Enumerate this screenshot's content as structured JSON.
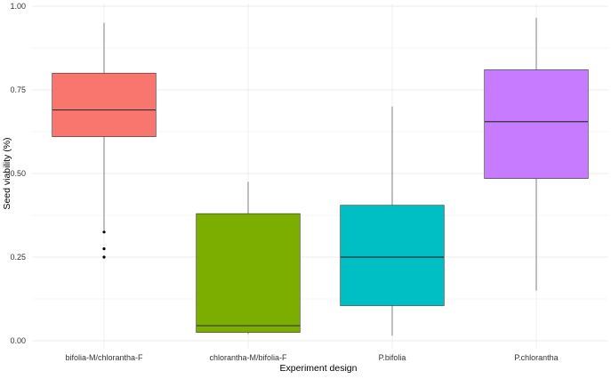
{
  "chart_data": {
    "type": "boxplot",
    "title": "",
    "xlabel": "Experiment design",
    "ylabel": "Seed viability (%)",
    "ylim": [
      0,
      1
    ],
    "y_ticks": [
      "0.00",
      "0.25",
      "0.50",
      "0.75",
      "1.00"
    ],
    "y_tick_values": [
      0,
      0.25,
      0.5,
      0.75,
      1.0
    ],
    "grid": true,
    "legend": "none",
    "categories": [
      "bifolia-M/chlorantha-F",
      "chlorantha-M/bifolia-F",
      "P.bifolia",
      "P.chlorantha"
    ],
    "boxes": [
      {
        "category": "bifolia-M/chlorantha-F",
        "min": 0.33,
        "q1": 0.61,
        "median": 0.69,
        "q3": 0.8,
        "max": 0.95,
        "outliers": [
          0.325,
          0.275,
          0.25
        ],
        "color": "#F8766D"
      },
      {
        "category": "chlorantha-M/bifolia-F",
        "min": 0.02,
        "q1": 0.025,
        "median": 0.045,
        "q3": 0.38,
        "max": 0.475,
        "outliers": [],
        "color": "#7CAE00"
      },
      {
        "category": "P.bifolia",
        "min": 0.015,
        "q1": 0.105,
        "median": 0.25,
        "q3": 0.405,
        "max": 0.7,
        "outliers": [],
        "color": "#00BFC4"
      },
      {
        "category": "P.chlorantha",
        "min": 0.15,
        "q1": 0.485,
        "median": 0.655,
        "q3": 0.81,
        "max": 0.965,
        "outliers": [],
        "color": "#C77CFF"
      }
    ]
  }
}
